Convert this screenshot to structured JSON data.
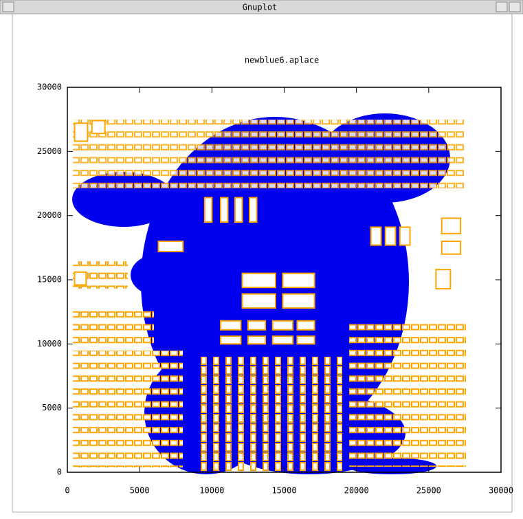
{
  "window": {
    "title": "Gnuplot"
  },
  "chart_data": {
    "type": "rect",
    "title": "newblue6.aplace",
    "xlim": [
      0,
      30000
    ],
    "ylim": [
      0,
      30000
    ],
    "xticks": [
      0,
      5000,
      10000,
      15000,
      20000,
      25000,
      30000
    ],
    "yticks": [
      0,
      5000,
      10000,
      15000,
      20000,
      25000,
      30000
    ],
    "color": "#ffa500",
    "blocks": [
      [
        12100,
        14400,
        14400,
        15500
      ],
      [
        14900,
        14400,
        17100,
        15500
      ],
      [
        12100,
        12800,
        14400,
        13900
      ],
      [
        14900,
        12800,
        17100,
        13900
      ],
      [
        10600,
        11100,
        12000,
        11800
      ],
      [
        12500,
        11100,
        13700,
        11800
      ],
      [
        14200,
        11100,
        15600,
        11800
      ],
      [
        15900,
        11100,
        17100,
        11800
      ],
      [
        10600,
        10000,
        12000,
        10600
      ],
      [
        12500,
        10000,
        13700,
        10600
      ],
      [
        14200,
        10000,
        15600,
        10600
      ],
      [
        15900,
        10000,
        17100,
        10600
      ],
      [
        9500,
        19500,
        10000,
        21400
      ],
      [
        10600,
        19500,
        11100,
        21400
      ],
      [
        11600,
        19500,
        12100,
        21400
      ],
      [
        12600,
        19500,
        13100,
        21400
      ],
      [
        500,
        25800,
        1400,
        27200
      ],
      [
        1700,
        26400,
        2600,
        27400
      ],
      [
        21000,
        17700,
        21700,
        19100
      ],
      [
        22000,
        17700,
        22700,
        19100
      ],
      [
        23000,
        17700,
        23700,
        19100
      ],
      [
        25900,
        18600,
        27200,
        19800
      ],
      [
        25900,
        17000,
        27200,
        18000
      ],
      [
        25500,
        14300,
        26500,
        15800
      ],
      [
        500,
        14600,
        1300,
        15600
      ],
      [
        6300,
        17200,
        8000,
        18000
      ]
    ]
  }
}
